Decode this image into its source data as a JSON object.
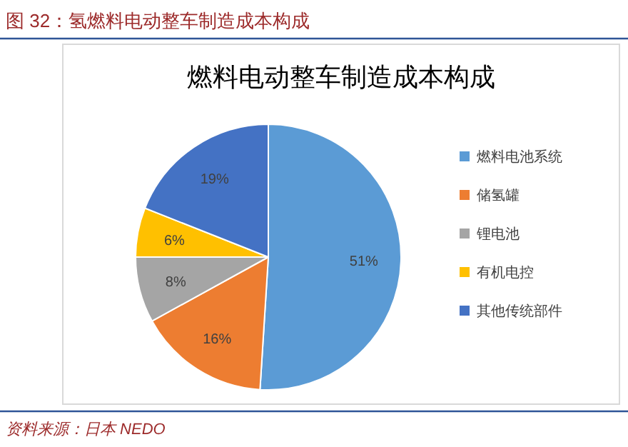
{
  "chart_data": {
    "type": "pie",
    "title": "燃料电动整车制造成本构成",
    "annotations": [
      "图 32：氢燃料电动整车制造成本构成",
      "资料来源：日本 NEDO"
    ],
    "categories": [
      "燃料电池系统",
      "储氢罐",
      "锂电池",
      "有机电控",
      "其他传统部件"
    ],
    "values": [
      51,
      16,
      8,
      6,
      19
    ],
    "colors": [
      "#5b9bd5",
      "#ed7d31",
      "#a5a5a5",
      "#ffc000",
      "#4472c4"
    ],
    "value_labels": [
      "51%",
      "16%",
      "8%",
      "6%",
      "19%"
    ],
    "legend": "right"
  }
}
